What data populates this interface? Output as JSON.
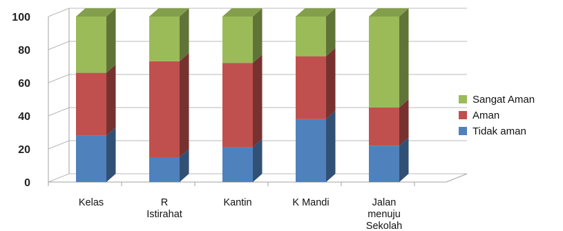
{
  "chart_data": {
    "type": "bar",
    "stacked": true,
    "three_d": true,
    "categories": [
      [
        "Kelas"
      ],
      [
        "R",
        "Istirahat"
      ],
      [
        "Kantin"
      ],
      [
        "K Mandi"
      ],
      [
        "Jalan",
        "menuju",
        "Sekolah"
      ]
    ],
    "series": [
      {
        "name": "Tidak aman",
        "color": "#4F81BD",
        "values": [
          28,
          15,
          21,
          38,
          22
        ]
      },
      {
        "name": "Aman",
        "color": "#C0504D",
        "values": [
          38,
          58,
          51,
          38,
          23
        ]
      },
      {
        "name": "Sangat Aman",
        "color": "#9BBB59",
        "values": [
          34,
          27,
          28,
          24,
          55
        ]
      }
    ],
    "yticks": [
      0,
      20,
      40,
      60,
      80,
      100
    ],
    "ylim": [
      0,
      100
    ],
    "grid": true,
    "legend_position": "right"
  }
}
